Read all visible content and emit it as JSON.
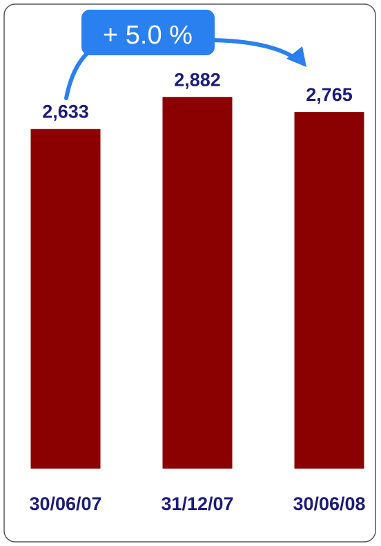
{
  "chart_data": {
    "type": "bar",
    "categories": [
      "30/06/07",
      "31/12/07",
      "30/06/08"
    ],
    "values": [
      2633,
      2882,
      2765
    ],
    "value_labels": [
      "2,633",
      "2,882",
      "2,765"
    ],
    "title": "",
    "xlabel": "",
    "ylabel": "",
    "ylim": [
      0,
      2980
    ],
    "grid": false,
    "annotation": {
      "text": "+ 5.0 %",
      "from_category": "30/06/07",
      "to_category": "30/06/08"
    }
  },
  "colors": {
    "bar": "#8b0000",
    "label_text": "#1c1c7a",
    "badge": "#2b80f0",
    "arrow": "#2b80f0",
    "frame_border": "#555555"
  }
}
